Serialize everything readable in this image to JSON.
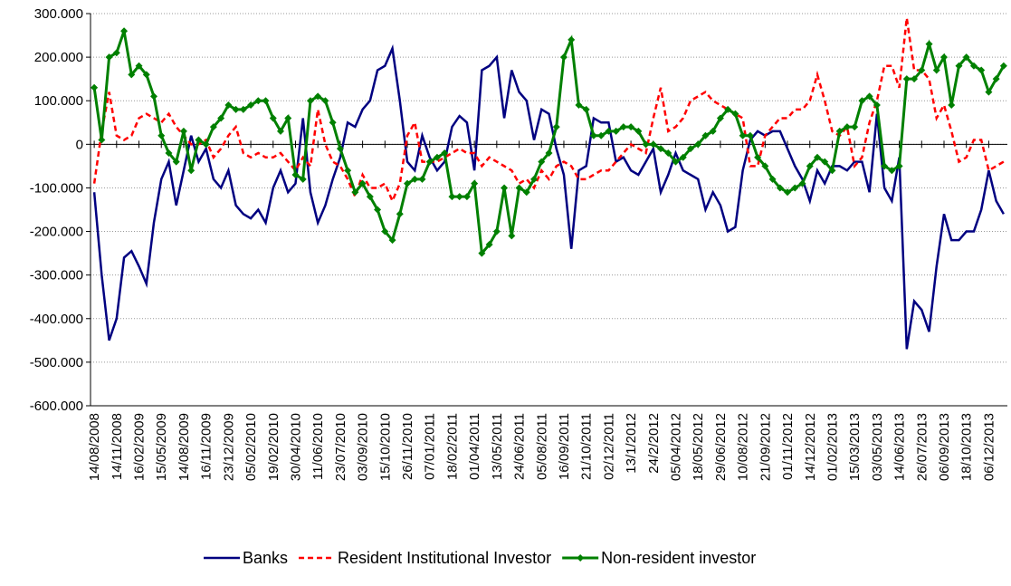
{
  "chart_data": {
    "type": "line",
    "categories": [
      "14/08/2008",
      null,
      null,
      "14/11/2008",
      null,
      null,
      "16/02/2009",
      null,
      null,
      "15/05/2009",
      null,
      null,
      "14/08/2009",
      null,
      null,
      "16/11/2009",
      null,
      null,
      "23/12/2009",
      null,
      null,
      "05/02/2010",
      null,
      null,
      "19/02/2010",
      null,
      null,
      "30/04/2010",
      null,
      null,
      "11/06/2010",
      null,
      null,
      "23/07/2010",
      null,
      null,
      "03/09/2010",
      null,
      null,
      "15/10/2010",
      null,
      null,
      "26/11/2010",
      null,
      null,
      "07/01/2011",
      null,
      null,
      "18/02/2011",
      null,
      null,
      "01/04/2011",
      null,
      null,
      "13/05/2011",
      null,
      null,
      "24/06/2011",
      null,
      null,
      "05/08/2011",
      null,
      null,
      "16/09/2011",
      null,
      null,
      "21/10/2011",
      null,
      null,
      "02/12/2011",
      null,
      null,
      "13/1/2012",
      null,
      null,
      "24/2/2012",
      null,
      null,
      "05/04/2012",
      null,
      null,
      "18/05/2012",
      null,
      null,
      "29/06/2012",
      null,
      null,
      "10/08/2012",
      null,
      null,
      "21/09/2012",
      null,
      null,
      "01/11/2012",
      null,
      null,
      "14/12/2012",
      null,
      null,
      "01/02/2013",
      null,
      null,
      "15/03/2013",
      null,
      null,
      "03/05/2013",
      null,
      null,
      "14/06/2013",
      null,
      null,
      "26/07/2013",
      null,
      null,
      "06/09/2013",
      null,
      null,
      "18/10/2013",
      null,
      null,
      "06/12/2013",
      null,
      null
    ],
    "series": [
      {
        "name": "Banks",
        "color": "#000080",
        "style": "solid",
        "markers": false,
        "values": [
          -110,
          -300,
          -450,
          -400,
          -260,
          -245,
          -280,
          -320,
          -180,
          -80,
          -40,
          -140,
          -60,
          20,
          -40,
          -10,
          -80,
          -100,
          -60,
          -140,
          -160,
          -170,
          -150,
          -180,
          -100,
          -60,
          -110,
          -90,
          60,
          -110,
          -180,
          -140,
          -80,
          -30,
          50,
          40,
          80,
          100,
          170,
          180,
          220,
          100,
          -40,
          -60,
          20,
          -30,
          -60,
          -40,
          40,
          65,
          50,
          -60,
          170,
          180,
          200,
          60,
          170,
          120,
          100,
          10,
          80,
          70,
          -10,
          -70,
          -240,
          -60,
          -50,
          60,
          50,
          50,
          -40,
          -30,
          -60,
          -70,
          -40,
          -10,
          -110,
          -70,
          -20,
          -60,
          -70,
          -80,
          -150,
          -110,
          -140,
          -200,
          -190,
          -60,
          10,
          30,
          20,
          30,
          30,
          -10,
          -50,
          -80,
          -130,
          -60,
          -90,
          -50,
          -50,
          -60,
          -40,
          -40,
          -110,
          70,
          -100,
          -130,
          -30,
          -470,
          -360,
          -380,
          -430,
          -280,
          -160,
          -220,
          -220,
          -200,
          -200,
          -150,
          -60,
          -130,
          -160
        ]
      },
      {
        "name": "Resident Institutional Investor",
        "color": "#ff0000",
        "style": "dashed",
        "markers": false,
        "values": [
          -90,
          30,
          120,
          20,
          10,
          20,
          60,
          70,
          60,
          50,
          70,
          40,
          20,
          0,
          0,
          10,
          -30,
          -10,
          20,
          40,
          -20,
          -30,
          -20,
          -30,
          -30,
          -20,
          -40,
          -60,
          -30,
          -50,
          80,
          0,
          -40,
          -50,
          -80,
          -120,
          -70,
          -100,
          -100,
          -90,
          -130,
          -90,
          20,
          50,
          -40,
          -40,
          -40,
          -30,
          -20,
          -10,
          -20,
          -20,
          -50,
          -30,
          -40,
          -50,
          -60,
          -90,
          -80,
          -100,
          -60,
          -80,
          -50,
          -40,
          -50,
          -80,
          -80,
          -70,
          -60,
          -60,
          -40,
          -20,
          0,
          -10,
          -20,
          60,
          130,
          30,
          40,
          60,
          100,
          110,
          120,
          100,
          90,
          80,
          70,
          60,
          -50,
          -50,
          20,
          40,
          60,
          60,
          80,
          80,
          100,
          160,
          100,
          30,
          20,
          40,
          -50,
          -30,
          50,
          100,
          180,
          180,
          130,
          290,
          170,
          170,
          150,
          60,
          90,
          30,
          -40,
          -30,
          10,
          10,
          -60,
          -50,
          -40
        ]
      },
      {
        "name": "Non-resident investor",
        "color": "#008000",
        "style": "solid",
        "markers": true,
        "values": [
          130,
          10,
          200,
          210,
          260,
          160,
          180,
          160,
          110,
          20,
          -20,
          -40,
          30,
          -60,
          10,
          0,
          40,
          60,
          90,
          80,
          80,
          90,
          100,
          100,
          60,
          30,
          60,
          -70,
          -80,
          100,
          110,
          100,
          50,
          -10,
          -60,
          -110,
          -90,
          -120,
          -150,
          -200,
          -220,
          -160,
          -90,
          -80,
          -80,
          -40,
          -30,
          -20,
          -120,
          -120,
          -120,
          -90,
          -250,
          -230,
          -200,
          -100,
          -210,
          -100,
          -110,
          -80,
          -40,
          -20,
          40,
          200,
          240,
          90,
          80,
          20,
          20,
          30,
          30,
          40,
          40,
          30,
          0,
          0,
          -10,
          -20,
          -40,
          -30,
          -10,
          0,
          20,
          30,
          60,
          80,
          70,
          20,
          20,
          -30,
          -50,
          -80,
          -100,
          -110,
          -100,
          -90,
          -50,
          -30,
          -40,
          -60,
          30,
          40,
          40,
          100,
          110,
          90,
          -50,
          -60,
          -50,
          150,
          150,
          170,
          230,
          170,
          200,
          90,
          180,
          200,
          180,
          170,
          120,
          150,
          180
        ]
      }
    ],
    "ylim": [
      -600,
      300
    ],
    "yticks": [
      {
        "value": 300,
        "label": "300.000"
      },
      {
        "value": 200,
        "label": "200.000"
      },
      {
        "value": 100,
        "label": "100.000"
      },
      {
        "value": 0,
        "label": "0"
      },
      {
        "value": -100,
        "label": "-100.000"
      },
      {
        "value": -200,
        "label": "-200.000"
      },
      {
        "value": -300,
        "label": "-300.000"
      },
      {
        "value": -400,
        "label": "-400.000"
      },
      {
        "value": -500,
        "label": "-500.000"
      },
      {
        "value": -600,
        "label": "-600.000"
      }
    ],
    "grid": true,
    "legend": "bottom"
  }
}
